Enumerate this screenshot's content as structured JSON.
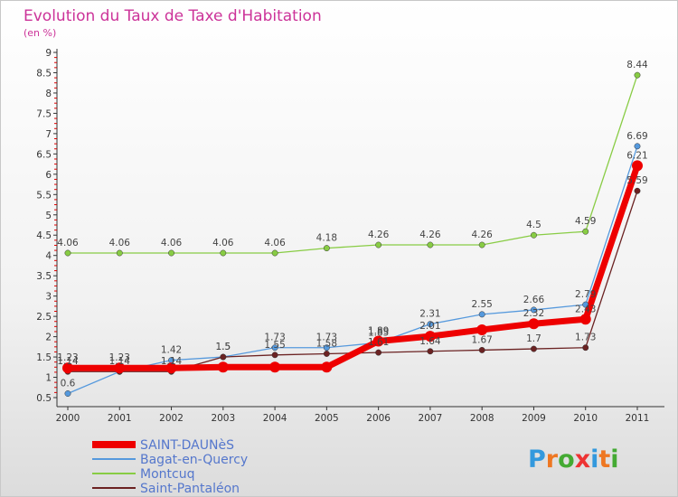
{
  "chart_data": {
    "type": "line",
    "title": "Evolution du Taux de Taxe d'Habitation",
    "subtitle": "(en %)",
    "xlabel": "",
    "ylabel": "",
    "x": [
      "2000",
      "2001",
      "2002",
      "2003",
      "2004",
      "2005",
      "2006",
      "2007",
      "2008",
      "2009",
      "2010",
      "2011"
    ],
    "ylim": [
      0.5,
      9
    ],
    "yticks": [
      "0.5",
      "1",
      "1.5",
      "2",
      "2.5",
      "3",
      "3.5",
      "4",
      "4.5",
      "5",
      "5.5",
      "6",
      "6.5",
      "7",
      "7.5",
      "8",
      "8.5",
      "9"
    ],
    "grid": false,
    "legend_position": "bottom-left",
    "series": [
      {
        "name": "SAINT-DAUNèS",
        "color": "#ee0000",
        "values": [
          1.23,
          1.23,
          1.23,
          1.25,
          1.25,
          1.25,
          1.89,
          2.01,
          2.17,
          2.32,
          2.43,
          6.21
        ],
        "labels": [
          "1.23",
          "1.23",
          "",
          "",
          "",
          "",
          "1.89",
          "2.01",
          "",
          "2.32",
          "2.43",
          "6.21"
        ]
      },
      {
        "name": "Bagat-en-Quercy",
        "color": "#5599dd",
        "values": [
          0.6,
          1.14,
          1.42,
          1.5,
          1.73,
          1.73,
          1.85,
          2.31,
          2.55,
          2.66,
          2.79,
          6.69
        ],
        "labels": [
          "0.6",
          "1.14",
          "1.42",
          "1.5",
          "1.73",
          "1.73",
          "1.85",
          "2.31",
          "2.55",
          "2.66",
          "2.79",
          "6.69"
        ]
      },
      {
        "name": "Montcuq",
        "color": "#88cc44",
        "values": [
          4.06,
          4.06,
          4.06,
          4.06,
          4.06,
          4.18,
          4.26,
          4.26,
          4.26,
          4.5,
          4.59,
          8.44
        ],
        "labels": [
          "4.06",
          "4.06",
          "4.06",
          "4.06",
          "4.06",
          "4.18",
          "4.26",
          "4.26",
          "4.26",
          "4.5",
          "4.59",
          "8.44"
        ]
      },
      {
        "name": "Saint-Pantaléon",
        "color": "#6b2222",
        "values": [
          1.14,
          1.14,
          1.14,
          1.5,
          1.55,
          1.58,
          1.61,
          1.64,
          1.67,
          1.7,
          1.73,
          5.59
        ],
        "labels": [
          "1.14",
          "",
          "1.14",
          "1.5",
          "1.55",
          "1.58",
          "1.61",
          "1.64",
          "1.67",
          "1.7",
          "1.73",
          "5.59"
        ]
      }
    ]
  },
  "logo": {
    "text": "Proxiti"
  }
}
